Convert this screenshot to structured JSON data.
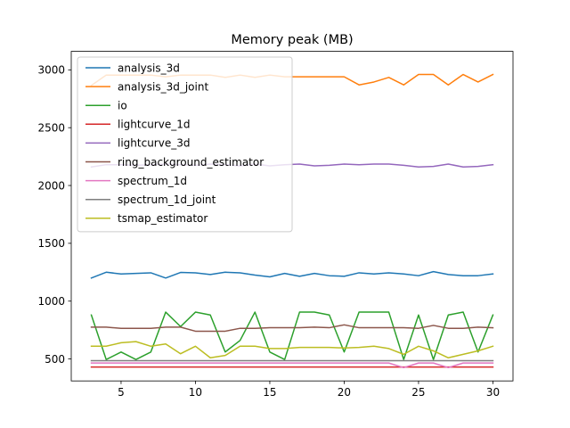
{
  "chart_data": {
    "type": "line",
    "title": "Memory peak (MB)",
    "xlabel": "",
    "ylabel": "",
    "xlim": [
      1.65,
      31.35
    ],
    "ylim": [
      310,
      3160
    ],
    "xticks": [
      5,
      10,
      15,
      20,
      25,
      30
    ],
    "yticks": [
      500,
      1000,
      1500,
      2000,
      2500,
      3000
    ],
    "legend_position": "upper-left",
    "grid": false,
    "x": [
      3,
      4,
      5,
      6,
      7,
      8,
      9,
      10,
      11,
      12,
      13,
      14,
      15,
      16,
      17,
      18,
      19,
      20,
      21,
      22,
      23,
      24,
      25,
      26,
      27,
      28,
      29,
      30
    ],
    "series": [
      {
        "name": "analysis_3d",
        "color": "#1f77b4",
        "values": [
          1200,
          1250,
          1235,
          1240,
          1245,
          1200,
          1248,
          1245,
          1230,
          1250,
          1245,
          1225,
          1210,
          1240,
          1215,
          1240,
          1220,
          1215,
          1245,
          1235,
          1245,
          1235,
          1220,
          1255,
          1230,
          1220,
          1220,
          1235
        ]
      },
      {
        "name": "analysis_3d_joint",
        "color": "#ff7f0e",
        "values": [
          2865,
          2955,
          2955,
          2955,
          2955,
          2940,
          2955,
          2955,
          2955,
          2935,
          2955,
          2935,
          2955,
          2940,
          2940,
          2940,
          2940,
          2940,
          2870,
          2895,
          2935,
          2870,
          2960,
          2960,
          2870,
          2960,
          2895,
          2960
        ]
      },
      {
        "name": "io",
        "color": "#2ca02c",
        "values": [
          880,
          495,
          560,
          495,
          560,
          905,
          780,
          905,
          880,
          560,
          660,
          905,
          560,
          495,
          905,
          905,
          880,
          560,
          905,
          905,
          905,
          495,
          880,
          495,
          880,
          905,
          560,
          880
        ]
      },
      {
        "name": "lightcurve_1d",
        "color": "#d62728",
        "values": [
          430,
          430,
          430,
          430,
          430,
          430,
          430,
          430,
          430,
          430,
          430,
          430,
          430,
          430,
          430,
          430,
          430,
          430,
          430,
          430,
          430,
          430,
          430,
          430,
          430,
          430,
          430,
          430
        ]
      },
      {
        "name": "lightcurve_3d",
        "color": "#9467bd",
        "values": [
          2160,
          2180,
          2180,
          2175,
          2180,
          2185,
          2180,
          2175,
          2185,
          2180,
          2170,
          2185,
          2170,
          2180,
          2185,
          2170,
          2175,
          2185,
          2180,
          2185,
          2185,
          2175,
          2160,
          2165,
          2185,
          2160,
          2165,
          2180
        ]
      },
      {
        "name": "ring_background_estimator",
        "color": "#8c564b",
        "values": [
          775,
          775,
          765,
          765,
          765,
          775,
          775,
          740,
          740,
          740,
          765,
          765,
          770,
          770,
          770,
          775,
          770,
          795,
          770,
          770,
          770,
          770,
          765,
          790,
          765,
          765,
          775,
          770
        ]
      },
      {
        "name": "spectrum_1d",
        "color": "#e377c2",
        "values": [
          465,
          465,
          465,
          465,
          465,
          465,
          465,
          465,
          465,
          465,
          465,
          465,
          465,
          465,
          465,
          465,
          465,
          465,
          465,
          465,
          465,
          425,
          465,
          465,
          425,
          465,
          465,
          465
        ]
      },
      {
        "name": "spectrum_1d_joint",
        "color": "#7f7f7f",
        "values": [
          485,
          485,
          485,
          485,
          485,
          485,
          485,
          485,
          485,
          485,
          485,
          485,
          485,
          485,
          485,
          485,
          485,
          485,
          485,
          485,
          485,
          485,
          485,
          485,
          485,
          485,
          485,
          485
        ]
      },
      {
        "name": "tsmap_estimator",
        "color": "#bcbd22",
        "values": [
          610,
          610,
          640,
          650,
          610,
          630,
          545,
          610,
          510,
          530,
          610,
          610,
          590,
          590,
          600,
          600,
          600,
          595,
          600,
          610,
          590,
          540,
          610,
          570,
          510,
          540,
          570,
          610
        ]
      }
    ]
  }
}
